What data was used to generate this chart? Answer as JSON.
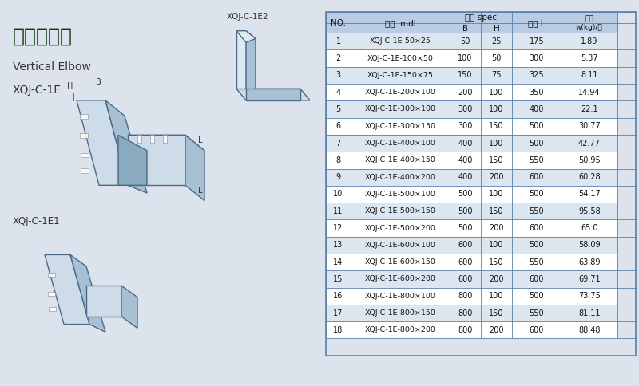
{
  "title_zh": "垂直上弯通",
  "title_en": "Vertical Elbow",
  "title_model": "XQJ-C-1E",
  "label_xqj_c1e1": "XQJ-C-1E1",
  "label_xqj_c1e2": "XQJ-C-1E2",
  "bg_color": "#dde3ed",
  "table_header_bg": "#b8cce4",
  "table_alt_bg": "#dce6f1",
  "table_border": "#5a7fa8",
  "col_headers": [
    "NO.",
    "型号  mdl",
    "规格 spec",
    "",
    "长度 L",
    "重量\nw(kg)/只"
  ],
  "sub_headers": [
    "B",
    "H"
  ],
  "rows": [
    [
      1,
      "XQJ-C-1E-50×25",
      50,
      25,
      175,
      1.89
    ],
    [
      2,
      "XQJ-C-1E-100×50",
      100,
      50,
      300,
      5.37
    ],
    [
      3,
      "XQJ-C-1E-150×75",
      150,
      75,
      325,
      8.11
    ],
    [
      4,
      "XQJ-C-1E-200×100",
      200,
      100,
      350,
      14.94
    ],
    [
      5,
      "XQJ-C-1E-300×100",
      300,
      100,
      400,
      22.1
    ],
    [
      6,
      "XQJ-C-1E-300×150",
      300,
      150,
      500,
      30.77
    ],
    [
      7,
      "XQJ-C-1E-400×100",
      400,
      100,
      500,
      42.77
    ],
    [
      8,
      "XQJ-C-1E-400×150",
      400,
      150,
      550,
      50.95
    ],
    [
      9,
      "XQJ-C-1E-400×200",
      400,
      200,
      600,
      60.28
    ],
    [
      10,
      "XQJ-C-1E-500×100",
      500,
      100,
      500,
      54.17
    ],
    [
      11,
      "XQJ-C-1E-500×150",
      500,
      150,
      550,
      95.58
    ],
    [
      12,
      "XQJ-C-1E-500×200",
      500,
      200,
      600,
      65.0
    ],
    [
      13,
      "XQJ-C-1E-600×100",
      600,
      100,
      500,
      58.09
    ],
    [
      14,
      "XQJ-C-1E-600×150",
      600,
      150,
      550,
      63.89
    ],
    [
      15,
      "XQJ-C-1E-600×200",
      600,
      200,
      600,
      69.71
    ],
    [
      16,
      "XQJ-C-1E-800×100",
      800,
      100,
      500,
      73.75
    ],
    [
      17,
      "XQJ-C-1E-800×150",
      800,
      150,
      550,
      81.11
    ],
    [
      18,
      "XQJ-C-1E-800×200",
      800,
      200,
      600,
      88.48
    ]
  ],
  "text_color": "#1a3a5c",
  "title_color": "#0a3a0a"
}
